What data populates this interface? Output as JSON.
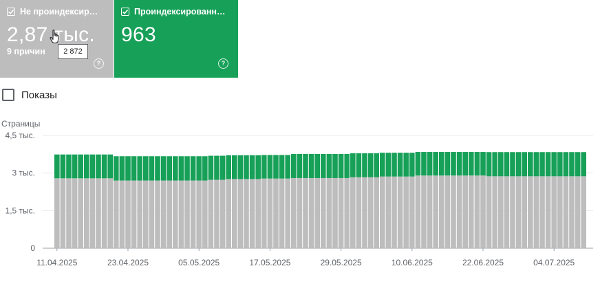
{
  "cards": {
    "not_indexed": {
      "title": "Не проиндексированные",
      "value": "2,87 тыс.",
      "sub": "9 причин",
      "color": "#bdbdbd",
      "checked": true
    },
    "indexed": {
      "title": "Проиндексированные",
      "value": "963",
      "color": "#17a058",
      "checked": true
    }
  },
  "tooltip": {
    "text": "2 872"
  },
  "icons": {
    "help": "?",
    "cursor": "hand-pointer-icon"
  },
  "show_toggle": {
    "label": "Показы",
    "checked": false
  },
  "chart_data": {
    "type": "bar",
    "stacked": true,
    "ylabel": "Страницы",
    "ylim": [
      0,
      4500
    ],
    "yticks": [
      {
        "value": 0,
        "label": "0"
      },
      {
        "value": 1500,
        "label": "1,5 тыс."
      },
      {
        "value": 3000,
        "label": "3 тыс."
      },
      {
        "value": 4500,
        "label": "4,5 тыс."
      }
    ],
    "xtick_labels": [
      "11.04.2025",
      "23.04.2025",
      "05.05.2025",
      "17.05.2025",
      "29.05.2025",
      "10.06.2025",
      "22.06.2025",
      "04.07.2025"
    ],
    "start_date": "2025-04-11",
    "days": 90,
    "grid": true,
    "series": [
      {
        "name": "Не проиндексированные",
        "color": "#bdbdbd",
        "segments": [
          {
            "from": 0,
            "to": 9,
            "value": 2790
          },
          {
            "from": 10,
            "to": 25,
            "value": 2700
          },
          {
            "from": 26,
            "to": 28,
            "value": 2730
          },
          {
            "from": 29,
            "to": 34,
            "value": 2760
          },
          {
            "from": 35,
            "to": 39,
            "value": 2780
          },
          {
            "from": 40,
            "to": 49,
            "value": 2800
          },
          {
            "from": 50,
            "to": 54,
            "value": 2830
          },
          {
            "from": 55,
            "to": 60,
            "value": 2860
          },
          {
            "from": 61,
            "to": 72,
            "value": 2900
          },
          {
            "from": 73,
            "to": 89,
            "value": 2872
          }
        ]
      },
      {
        "name": "Проиндексированные",
        "color": "#17a058",
        "segments": [
          {
            "from": 0,
            "to": 9,
            "value": 950
          },
          {
            "from": 10,
            "to": 25,
            "value": 970
          },
          {
            "from": 26,
            "to": 28,
            "value": 960
          },
          {
            "from": 29,
            "to": 34,
            "value": 950
          },
          {
            "from": 35,
            "to": 39,
            "value": 940
          },
          {
            "from": 40,
            "to": 49,
            "value": 960
          },
          {
            "from": 50,
            "to": 54,
            "value": 960
          },
          {
            "from": 55,
            "to": 60,
            "value": 950
          },
          {
            "from": 61,
            "to": 72,
            "value": 940
          },
          {
            "from": 73,
            "to": 89,
            "value": 963
          }
        ]
      }
    ]
  }
}
